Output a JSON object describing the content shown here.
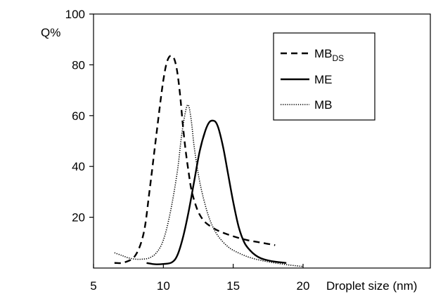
{
  "chart_data": {
    "type": "line",
    "title": "",
    "xlabel": "Droplet size (nm)",
    "ylabel": "Q%",
    "xlim": [
      5,
      25
    ],
    "ylim": [
      0,
      100
    ],
    "x_ticks": [
      5,
      10,
      15,
      20
    ],
    "y_ticks": [
      20,
      40,
      60,
      80,
      100
    ],
    "grid": false,
    "legend_position": "top-right",
    "series": [
      {
        "name": "MB",
        "subscript": "DS",
        "dash": "dashed",
        "color": "#000000",
        "x": [
          6.5,
          7.2,
          8.0,
          8.6,
          9.0,
          9.4,
          9.8,
          10.0,
          10.2,
          10.4,
          10.6,
          10.8,
          11.0,
          11.2,
          11.4,
          11.6,
          11.8,
          12.0,
          12.3,
          12.6,
          13.0,
          13.5,
          14.0,
          15.0,
          16.0,
          17.0,
          18.0
        ],
        "y": [
          2,
          2.2,
          5,
          14,
          30,
          48,
          66,
          74,
          80,
          83,
          83.5,
          82,
          77,
          68,
          56,
          46,
          38,
          31,
          25,
          21,
          18,
          16,
          14.5,
          12.5,
          11,
          10,
          9
        ]
      },
      {
        "name": "ME",
        "subscript": "",
        "dash": "solid",
        "color": "#000000",
        "x": [
          8.8,
          9.4,
          10.0,
          10.6,
          11.0,
          11.4,
          11.8,
          12.2,
          12.6,
          13.0,
          13.3,
          13.6,
          13.8,
          14.0,
          14.3,
          14.6,
          15.0,
          15.4,
          15.8,
          16.2,
          16.6,
          17.0,
          17.5,
          18.0,
          18.8
        ],
        "y": [
          2,
          1.5,
          1.6,
          2.2,
          5,
          12,
          22,
          34,
          46,
          54,
          57.5,
          58,
          57,
          54,
          47,
          38,
          26,
          16,
          10,
          7,
          5,
          3.8,
          3,
          2.5,
          2
        ]
      },
      {
        "name": "MB",
        "subscript": "",
        "dash": "dotted",
        "color": "#000000",
        "x": [
          6.5,
          7.0,
          7.5,
          8.0,
          8.5,
          9.0,
          9.5,
          10.0,
          10.5,
          11.0,
          11.3,
          11.6,
          11.8,
          12.0,
          12.2,
          12.5,
          12.8,
          13.2,
          13.6,
          14.0,
          14.5,
          15.0,
          16.0,
          17.0,
          18.0,
          19.0,
          20.0
        ],
        "y": [
          6,
          5,
          4,
          3.5,
          3.5,
          4,
          6,
          11,
          22,
          38,
          52,
          62,
          64,
          58,
          48,
          37,
          29,
          21,
          15.5,
          12,
          9,
          7,
          4.5,
          3,
          2,
          1.2,
          0.6
        ]
      }
    ]
  }
}
